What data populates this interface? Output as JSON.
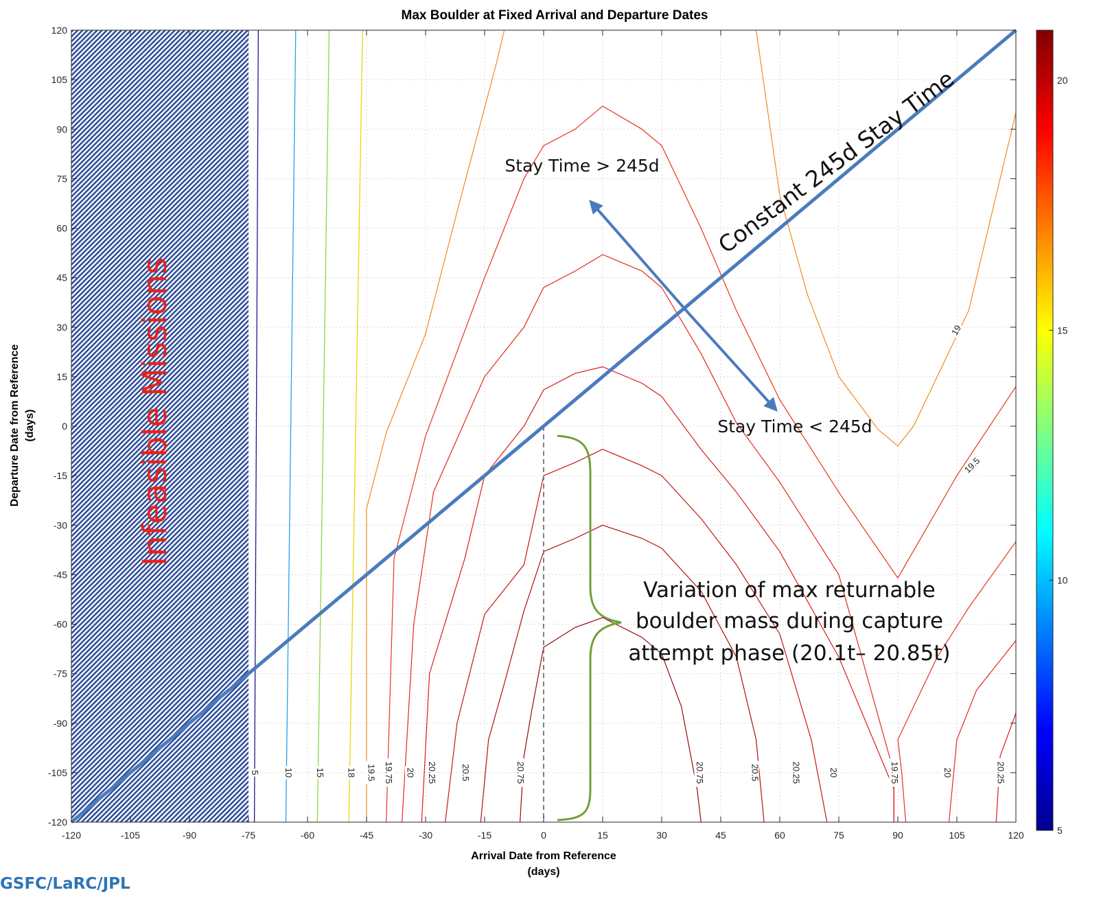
{
  "chart_data": {
    "type": "contour",
    "title": "Max Boulder at Fixed Arrival and Departure Dates",
    "xlabel_line1": "Arrival Date from Reference",
    "xlabel_line2": "(days)",
    "ylabel_line1": "Departure Date from Reference",
    "ylabel_line2": "(days)",
    "xlim": [
      -120,
      120
    ],
    "ylim": [
      -120,
      120
    ],
    "xticks": [
      -120,
      -105,
      -90,
      -75,
      -60,
      -45,
      -30,
      -15,
      0,
      15,
      30,
      45,
      60,
      75,
      90,
      105,
      120
    ],
    "yticks": [
      120,
      105,
      90,
      75,
      60,
      45,
      30,
      15,
      0,
      -15,
      -30,
      -45,
      -60,
      -75,
      -90,
      -105,
      -120
    ],
    "grid": true,
    "colorbar": {
      "min": 5,
      "max": 21,
      "ticks": [
        20,
        15,
        10,
        5
      ],
      "colormap": "jet"
    },
    "vertical_contours": [
      {
        "level": "5",
        "x": [
          -72.5,
          -73.5
        ],
        "color": "#1a1a8c"
      },
      {
        "level": "10",
        "x": [
          -63,
          -65.5
        ],
        "color": "#2aa0e8"
      },
      {
        "level": "15",
        "x": [
          -54.5,
          -57.5
        ],
        "color": "#8ed34a"
      },
      {
        "level": "18",
        "x": [
          -46,
          -49.5
        ],
        "color": "#e6d800"
      }
    ],
    "curved_contours": [
      {
        "color": "#ef8a1f",
        "points": [
          [
            -45,
            -120
          ],
          [
            -45,
            -25
          ],
          [
            -40,
            -2
          ],
          [
            -30,
            28
          ],
          [
            -22,
            65
          ],
          [
            -12,
            110
          ],
          [
            -10,
            120
          ]
        ]
      },
      {
        "color": "#ef8a1f",
        "points": [
          [
            54,
            120
          ],
          [
            60,
            70
          ],
          [
            67,
            40
          ],
          [
            75,
            15
          ],
          [
            85,
            -1
          ],
          [
            90,
            -6
          ],
          [
            94,
            0
          ],
          [
            108,
            35
          ],
          [
            120,
            95
          ]
        ]
      },
      {
        "color": "#e8331a",
        "points": [
          [
            -40,
            -120
          ],
          [
            -38,
            -40
          ],
          [
            -30,
            -3
          ],
          [
            -15,
            45
          ],
          [
            -5,
            75
          ],
          [
            0,
            85
          ],
          [
            8,
            90
          ],
          [
            15,
            97
          ],
          [
            25,
            90
          ],
          [
            30,
            85
          ],
          [
            40,
            60
          ],
          [
            49,
            35
          ],
          [
            60,
            8
          ],
          [
            75,
            -20
          ],
          [
            90,
            -46
          ],
          [
            105,
            -15
          ],
          [
            120,
            12
          ]
        ]
      },
      {
        "color": "#e2281a",
        "points": [
          [
            -36,
            -120
          ],
          [
            -33,
            -60
          ],
          [
            -28,
            -20
          ],
          [
            -15,
            15
          ],
          [
            -5,
            30
          ],
          [
            0,
            42
          ],
          [
            8,
            47
          ],
          [
            15,
            52
          ],
          [
            25,
            47
          ],
          [
            30,
            42
          ],
          [
            40,
            22
          ],
          [
            49,
            1
          ],
          [
            60,
            -17
          ],
          [
            75,
            -45
          ],
          [
            89,
            -105
          ],
          [
            89,
            -120
          ]
        ]
      },
      {
        "color": "#d91a1a",
        "points": [
          [
            -31,
            -120
          ],
          [
            -29,
            -75
          ],
          [
            -20,
            -40
          ],
          [
            -15,
            -15
          ],
          [
            -5,
            0
          ],
          [
            0,
            11
          ],
          [
            8,
            16
          ],
          [
            15,
            18
          ],
          [
            25,
            13
          ],
          [
            30,
            9
          ],
          [
            40,
            -7
          ],
          [
            49,
            -20
          ],
          [
            60,
            -38
          ],
          [
            75,
            -70
          ],
          [
            89,
            -110
          ],
          [
            89,
            -120
          ]
        ]
      },
      {
        "color": "#c81414",
        "points": [
          [
            -25,
            -120
          ],
          [
            -22,
            -90
          ],
          [
            -15,
            -57
          ],
          [
            -5,
            -42
          ],
          [
            0,
            -15
          ],
          [
            8,
            -11
          ],
          [
            15,
            -7
          ],
          [
            25,
            -12
          ],
          [
            30,
            -15
          ],
          [
            40,
            -28
          ],
          [
            49,
            -42
          ],
          [
            60,
            -63
          ],
          [
            68,
            -95
          ],
          [
            72,
            -120
          ]
        ]
      },
      {
        "color": "#b00e0e",
        "points": [
          [
            -16,
            -120
          ],
          [
            -14,
            -95
          ],
          [
            -10,
            -78
          ],
          [
            -5,
            -56
          ],
          [
            0,
            -38
          ],
          [
            8,
            -34
          ],
          [
            15,
            -30
          ],
          [
            25,
            -34
          ],
          [
            30,
            -37
          ],
          [
            40,
            -50
          ],
          [
            49,
            -70
          ],
          [
            54,
            -95
          ],
          [
            56,
            -120
          ]
        ]
      },
      {
        "color": "#930909",
        "points": [
          [
            -6,
            -120
          ],
          [
            -5,
            -100
          ],
          [
            -3,
            -86
          ],
          [
            0,
            -67
          ],
          [
            8,
            -61
          ],
          [
            15,
            -58
          ],
          [
            25,
            -64
          ],
          [
            30,
            -69
          ],
          [
            35,
            -85
          ],
          [
            39,
            -110
          ],
          [
            40,
            -120
          ]
        ]
      },
      {
        "color": "#e8331a",
        "points": [
          [
            92,
            -120
          ],
          [
            91,
            -105
          ],
          [
            90,
            -95
          ],
          [
            94,
            -85
          ],
          [
            100,
            -70
          ],
          [
            108,
            -55
          ],
          [
            120,
            -35
          ]
        ]
      },
      {
        "color": "#e2281a",
        "points": [
          [
            103,
            -120
          ],
          [
            105,
            -95
          ],
          [
            110,
            -80
          ],
          [
            120,
            -65
          ]
        ]
      },
      {
        "color": "#d91a1a",
        "points": [
          [
            115,
            -120
          ],
          [
            116,
            -100
          ],
          [
            120,
            -87
          ]
        ]
      }
    ],
    "contour_labels": [
      {
        "text": "5",
        "x": -73.5,
        "y": -105
      },
      {
        "text": "10",
        "x": -65,
        "y": -105
      },
      {
        "text": "15",
        "x": -57,
        "y": -105
      },
      {
        "text": "18",
        "x": -49,
        "y": -105
      },
      {
        "text": "19.5",
        "x": -44,
        "y": -105
      },
      {
        "text": "19.75",
        "x": -39.5,
        "y": -105
      },
      {
        "text": "20",
        "x": -34,
        "y": -105
      },
      {
        "text": "20.25",
        "x": -28.5,
        "y": -105
      },
      {
        "text": "20.5",
        "x": -20,
        "y": -105
      },
      {
        "text": "20.75",
        "x": -6,
        "y": -105
      },
      {
        "text": "20.75",
        "x": 39.5,
        "y": -105
      },
      {
        "text": "20.5",
        "x": 53.5,
        "y": -105
      },
      {
        "text": "20.25",
        "x": 64,
        "y": -105
      },
      {
        "text": "20",
        "x": 73.5,
        "y": -105
      },
      {
        "text": "19.75",
        "x": 89,
        "y": -105
      },
      {
        "text": "20",
        "x": 102.5,
        "y": -105
      },
      {
        "text": "20.25",
        "x": 116,
        "y": -105
      },
      {
        "text": "19",
        "x": 105,
        "y": 29,
        "rot": -60
      },
      {
        "text": "19.5",
        "x": 109,
        "y": -12,
        "rot": -45
      }
    ],
    "stay_line": {
      "points": [
        [
          -120,
          -120
        ],
        [
          120,
          120
        ]
      ],
      "label": "Constant 245d Stay Time"
    },
    "arrow": {
      "from": [
        37,
        34
      ],
      "to_up": [
        12,
        68
      ],
      "to_down": [
        59,
        5
      ]
    },
    "arrow_labels": {
      "above": "Stay Time > 245d",
      "below": "Stay Time < 245d"
    },
    "infeasible": {
      "x_range": [
        -120,
        -75
      ],
      "label": "Infeasible Missions"
    },
    "dashed_line": {
      "x": 0,
      "y_range": [
        -120,
        0
      ]
    },
    "bracket_note": {
      "lines": [
        "Variation of max returnable",
        "boulder mass during capture",
        "attempt phase (20.1t– 20.85t)"
      ]
    }
  },
  "footer": "GSFC/LaRC/JPL"
}
